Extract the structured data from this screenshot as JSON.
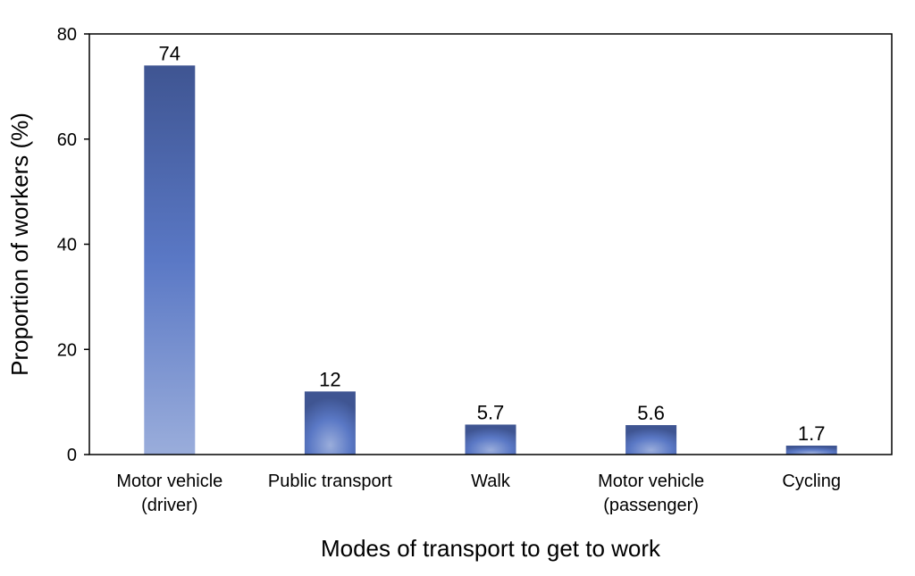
{
  "chart_data": {
    "type": "bar",
    "title": "",
    "xlabel": "Modes of transport to get to work",
    "ylabel": "Proportion of workers (%)",
    "ylim": [
      0,
      80
    ],
    "yticks": [
      0,
      20,
      40,
      60,
      80
    ],
    "grid": false,
    "legend": "none",
    "categories": [
      [
        "Motor vehicle",
        "(driver)"
      ],
      [
        "Public transport"
      ],
      [
        "Walk"
      ],
      [
        "Motor vehicle",
        "(passenger)"
      ],
      [
        "Cycling"
      ]
    ],
    "values": [
      74,
      12,
      5.7,
      5.6,
      1.7
    ],
    "data_labels": [
      "74",
      "12",
      "5.7",
      "5.6",
      "1.7"
    ],
    "colors": {
      "bar_dark": "#3f5592",
      "bar_mid": "#5a78c5",
      "bar_light": "#9aaddb",
      "axis": "#000000"
    }
  }
}
